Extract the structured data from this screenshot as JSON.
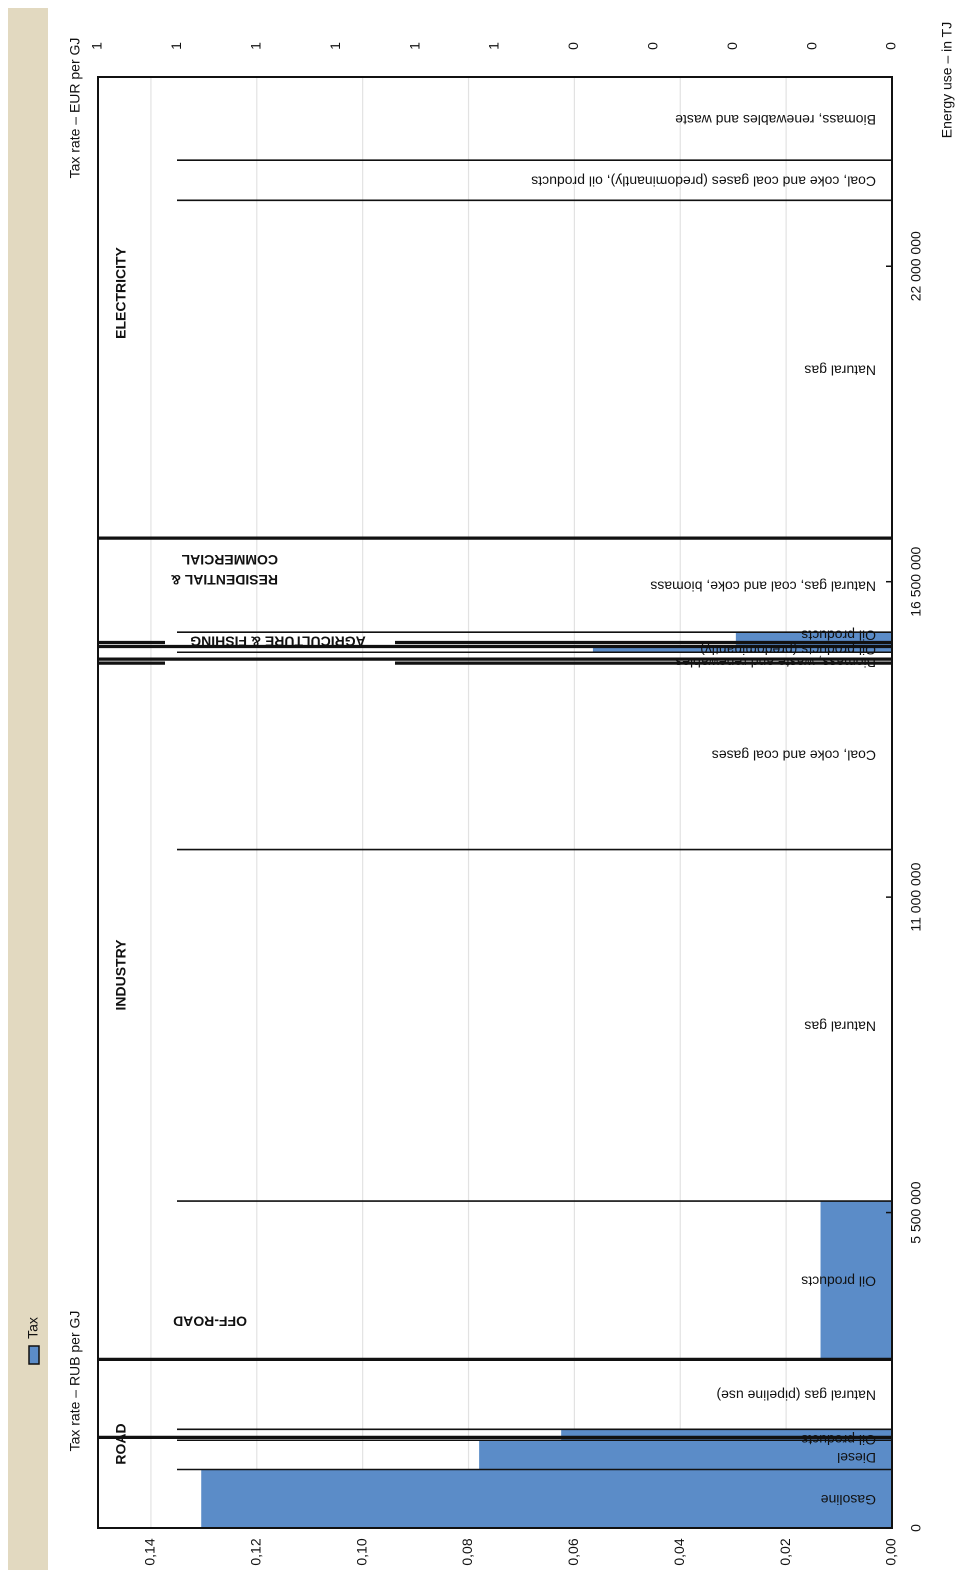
{
  "chart_data": {
    "type": "bar",
    "orientation": "variable-width bars, figure rotated 90 degrees",
    "legend": {
      "label": "Tax",
      "color": "#5b8cc8"
    },
    "x_axis": {
      "label": "Energy use – in TJ",
      "range": [
        0,
        25300000
      ],
      "ticks": [
        0,
        5500000,
        11000000,
        16500000,
        22000000
      ],
      "tick_labels": [
        "0",
        "5 500 000",
        "11 000 000",
        "16 500 000",
        "22 000 000"
      ]
    },
    "y_axis_left": {
      "label": "Tax rate – RUB per GJ",
      "range": [
        0,
        0.15
      ],
      "ticks": [
        0,
        0.02,
        0.04,
        0.06,
        0.08,
        0.1,
        0.12,
        0.14
      ],
      "tick_labels": [
        "0,00",
        "0,02",
        "0,04",
        "0,06",
        "0,08",
        "0,10",
        "0,12",
        "0,14"
      ]
    },
    "y_axis_right": {
      "label": "Tax rate – EUR per GJ",
      "tick_labels": [
        "0",
        "0",
        "0",
        "0",
        "0",
        "1",
        "1",
        "1",
        "1",
        "1",
        "1"
      ]
    },
    "sectors": [
      {
        "name": "ROAD",
        "start": 0,
        "end": 1580000
      },
      {
        "name": "OFF-ROAD",
        "start": 1580000,
        "end": 2940000
      },
      {
        "name": "INDUSTRY",
        "start": 2940000,
        "end": 15150000
      },
      {
        "name": "AGRICULTURE & FISHING",
        "start": 15150000,
        "end": 15370000
      },
      {
        "name": "RESIDENTIAL & COMMERCIAL",
        "start": 15370000,
        "end": 17260000
      },
      {
        "name": "ELECTRICITY",
        "start": 17260000,
        "end": 25300000
      }
    ],
    "bars": [
      {
        "label": "Gasoline",
        "start": 0,
        "end": 1020000,
        "value": 0.1305
      },
      {
        "label": "Diesel",
        "start": 1020000,
        "end": 1530000,
        "value": 0.078
      },
      {
        "label": "Oil products",
        "start": 1530000,
        "end": 1720000,
        "value": 0.0625
      },
      {
        "label": "Natural gas (pipeline use)",
        "start": 1720000,
        "end": 2940000,
        "value": 0
      },
      {
        "label": "Oil products",
        "start": 2940000,
        "end": 5700000,
        "value": 0.0135
      },
      {
        "label": "Natural gas",
        "start": 5700000,
        "end": 11830000,
        "value": 0
      },
      {
        "label": "Coal, coke and coal gases",
        "start": 11830000,
        "end": 15150000,
        "value": 0
      },
      {
        "label": "Biomass, waste and renewables",
        "start": 15150000,
        "end": 15270000,
        "value": 0
      },
      {
        "label": "Oil products (predominantly)",
        "start": 15270000,
        "end": 15370000,
        "value": 0.0565
      },
      {
        "label": "Oil products",
        "start": 15370000,
        "end": 15620000,
        "value": 0.0295
      },
      {
        "label": "Natural gas, coal and coke, biomass",
        "start": 15620000,
        "end": 17260000,
        "value": 0
      },
      {
        "label": "Natural gas",
        "start": 17260000,
        "end": 23150000,
        "value": 0
      },
      {
        "label": "Coal, coke and coal gases (predominantly), oil products",
        "start": 23150000,
        "end": 23850000,
        "value": 0
      },
      {
        "label": "Biomass, renewables and waste",
        "start": 23850000,
        "end": 25300000,
        "value": 0
      }
    ]
  }
}
